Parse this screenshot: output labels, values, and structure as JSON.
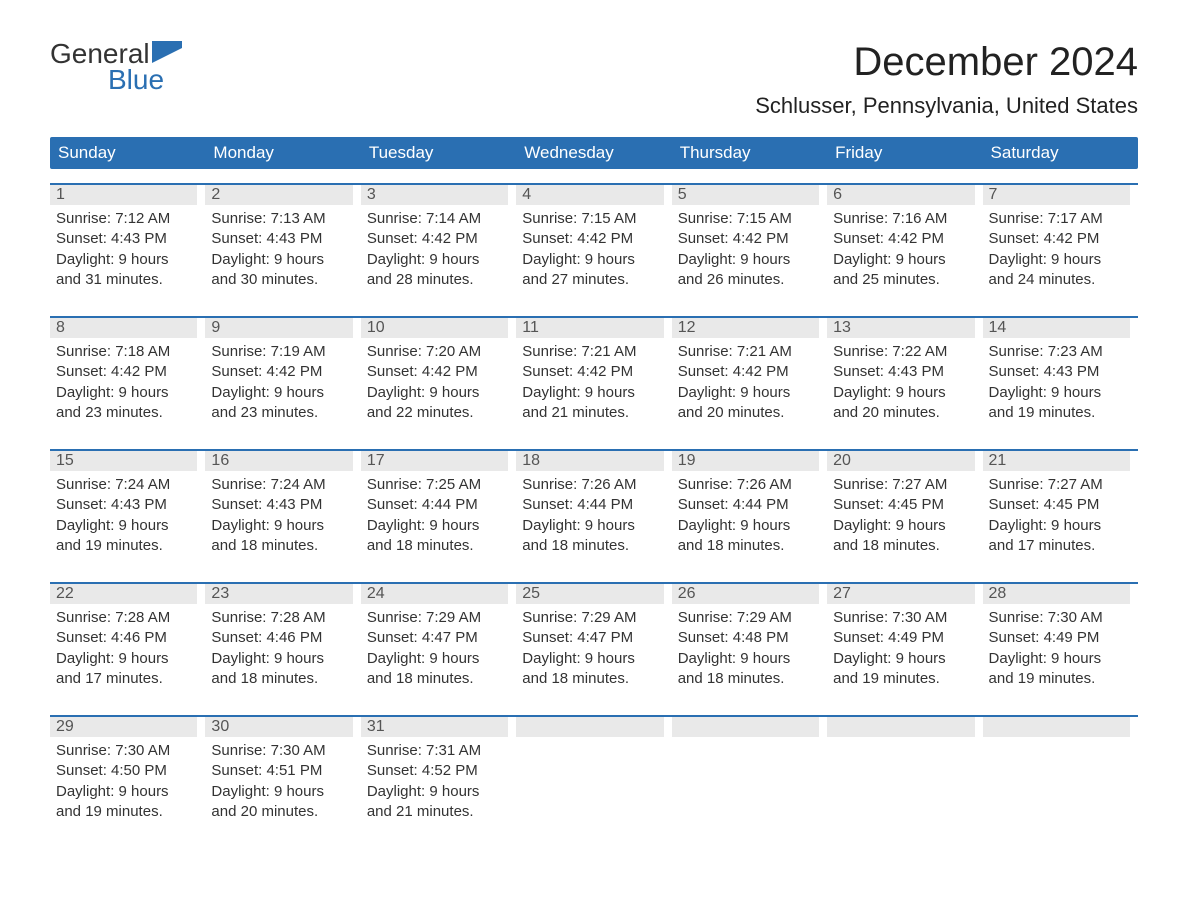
{
  "logo": {
    "word1": "General",
    "word2": "Blue"
  },
  "title": {
    "month": "December 2024",
    "location": "Schlusser, Pennsylvania, United States"
  },
  "colors": {
    "header_bg": "#2a6fb2",
    "header_text": "#ffffff",
    "date_stripe_bg": "#e9e9e9",
    "date_stripe_text": "#555555",
    "body_text": "#333333",
    "week_border": "#2a6fb2",
    "background": "#ffffff",
    "logo_blue": "#2a6fb2"
  },
  "typography": {
    "title_fontsize": 40,
    "location_fontsize": 22,
    "dayheader_fontsize": 17,
    "date_fontsize": 16,
    "info_fontsize": 15,
    "font_family": "Arial"
  },
  "calendar": {
    "type": "calendar-table",
    "day_headers": [
      "Sunday",
      "Monday",
      "Tuesday",
      "Wednesday",
      "Thursday",
      "Friday",
      "Saturday"
    ],
    "weeks": [
      {
        "days": [
          {
            "date": "1",
            "sunrise": "Sunrise: 7:12 AM",
            "sunset": "Sunset: 4:43 PM",
            "dl1": "Daylight: 9 hours",
            "dl2": "and 31 minutes."
          },
          {
            "date": "2",
            "sunrise": "Sunrise: 7:13 AM",
            "sunset": "Sunset: 4:43 PM",
            "dl1": "Daylight: 9 hours",
            "dl2": "and 30 minutes."
          },
          {
            "date": "3",
            "sunrise": "Sunrise: 7:14 AM",
            "sunset": "Sunset: 4:42 PM",
            "dl1": "Daylight: 9 hours",
            "dl2": "and 28 minutes."
          },
          {
            "date": "4",
            "sunrise": "Sunrise: 7:15 AM",
            "sunset": "Sunset: 4:42 PM",
            "dl1": "Daylight: 9 hours",
            "dl2": "and 27 minutes."
          },
          {
            "date": "5",
            "sunrise": "Sunrise: 7:15 AM",
            "sunset": "Sunset: 4:42 PM",
            "dl1": "Daylight: 9 hours",
            "dl2": "and 26 minutes."
          },
          {
            "date": "6",
            "sunrise": "Sunrise: 7:16 AM",
            "sunset": "Sunset: 4:42 PM",
            "dl1": "Daylight: 9 hours",
            "dl2": "and 25 minutes."
          },
          {
            "date": "7",
            "sunrise": "Sunrise: 7:17 AM",
            "sunset": "Sunset: 4:42 PM",
            "dl1": "Daylight: 9 hours",
            "dl2": "and 24 minutes."
          }
        ]
      },
      {
        "days": [
          {
            "date": "8",
            "sunrise": "Sunrise: 7:18 AM",
            "sunset": "Sunset: 4:42 PM",
            "dl1": "Daylight: 9 hours",
            "dl2": "and 23 minutes."
          },
          {
            "date": "9",
            "sunrise": "Sunrise: 7:19 AM",
            "sunset": "Sunset: 4:42 PM",
            "dl1": "Daylight: 9 hours",
            "dl2": "and 23 minutes."
          },
          {
            "date": "10",
            "sunrise": "Sunrise: 7:20 AM",
            "sunset": "Sunset: 4:42 PM",
            "dl1": "Daylight: 9 hours",
            "dl2": "and 22 minutes."
          },
          {
            "date": "11",
            "sunrise": "Sunrise: 7:21 AM",
            "sunset": "Sunset: 4:42 PM",
            "dl1": "Daylight: 9 hours",
            "dl2": "and 21 minutes."
          },
          {
            "date": "12",
            "sunrise": "Sunrise: 7:21 AM",
            "sunset": "Sunset: 4:42 PM",
            "dl1": "Daylight: 9 hours",
            "dl2": "and 20 minutes."
          },
          {
            "date": "13",
            "sunrise": "Sunrise: 7:22 AM",
            "sunset": "Sunset: 4:43 PM",
            "dl1": "Daylight: 9 hours",
            "dl2": "and 20 minutes."
          },
          {
            "date": "14",
            "sunrise": "Sunrise: 7:23 AM",
            "sunset": "Sunset: 4:43 PM",
            "dl1": "Daylight: 9 hours",
            "dl2": "and 19 minutes."
          }
        ]
      },
      {
        "days": [
          {
            "date": "15",
            "sunrise": "Sunrise: 7:24 AM",
            "sunset": "Sunset: 4:43 PM",
            "dl1": "Daylight: 9 hours",
            "dl2": "and 19 minutes."
          },
          {
            "date": "16",
            "sunrise": "Sunrise: 7:24 AM",
            "sunset": "Sunset: 4:43 PM",
            "dl1": "Daylight: 9 hours",
            "dl2": "and 18 minutes."
          },
          {
            "date": "17",
            "sunrise": "Sunrise: 7:25 AM",
            "sunset": "Sunset: 4:44 PM",
            "dl1": "Daylight: 9 hours",
            "dl2": "and 18 minutes."
          },
          {
            "date": "18",
            "sunrise": "Sunrise: 7:26 AM",
            "sunset": "Sunset: 4:44 PM",
            "dl1": "Daylight: 9 hours",
            "dl2": "and 18 minutes."
          },
          {
            "date": "19",
            "sunrise": "Sunrise: 7:26 AM",
            "sunset": "Sunset: 4:44 PM",
            "dl1": "Daylight: 9 hours",
            "dl2": "and 18 minutes."
          },
          {
            "date": "20",
            "sunrise": "Sunrise: 7:27 AM",
            "sunset": "Sunset: 4:45 PM",
            "dl1": "Daylight: 9 hours",
            "dl2": "and 18 minutes."
          },
          {
            "date": "21",
            "sunrise": "Sunrise: 7:27 AM",
            "sunset": "Sunset: 4:45 PM",
            "dl1": "Daylight: 9 hours",
            "dl2": "and 17 minutes."
          }
        ]
      },
      {
        "days": [
          {
            "date": "22",
            "sunrise": "Sunrise: 7:28 AM",
            "sunset": "Sunset: 4:46 PM",
            "dl1": "Daylight: 9 hours",
            "dl2": "and 17 minutes."
          },
          {
            "date": "23",
            "sunrise": "Sunrise: 7:28 AM",
            "sunset": "Sunset: 4:46 PM",
            "dl1": "Daylight: 9 hours",
            "dl2": "and 18 minutes."
          },
          {
            "date": "24",
            "sunrise": "Sunrise: 7:29 AM",
            "sunset": "Sunset: 4:47 PM",
            "dl1": "Daylight: 9 hours",
            "dl2": "and 18 minutes."
          },
          {
            "date": "25",
            "sunrise": "Sunrise: 7:29 AM",
            "sunset": "Sunset: 4:47 PM",
            "dl1": "Daylight: 9 hours",
            "dl2": "and 18 minutes."
          },
          {
            "date": "26",
            "sunrise": "Sunrise: 7:29 AM",
            "sunset": "Sunset: 4:48 PM",
            "dl1": "Daylight: 9 hours",
            "dl2": "and 18 minutes."
          },
          {
            "date": "27",
            "sunrise": "Sunrise: 7:30 AM",
            "sunset": "Sunset: 4:49 PM",
            "dl1": "Daylight: 9 hours",
            "dl2": "and 19 minutes."
          },
          {
            "date": "28",
            "sunrise": "Sunrise: 7:30 AM",
            "sunset": "Sunset: 4:49 PM",
            "dl1": "Daylight: 9 hours",
            "dl2": "and 19 minutes."
          }
        ]
      },
      {
        "days": [
          {
            "date": "29",
            "sunrise": "Sunrise: 7:30 AM",
            "sunset": "Sunset: 4:50 PM",
            "dl1": "Daylight: 9 hours",
            "dl2": "and 19 minutes."
          },
          {
            "date": "30",
            "sunrise": "Sunrise: 7:30 AM",
            "sunset": "Sunset: 4:51 PM",
            "dl1": "Daylight: 9 hours",
            "dl2": "and 20 minutes."
          },
          {
            "date": "31",
            "sunrise": "Sunrise: 7:31 AM",
            "sunset": "Sunset: 4:52 PM",
            "dl1": "Daylight: 9 hours",
            "dl2": "and 21 minutes."
          },
          null,
          null,
          null,
          null
        ]
      }
    ]
  }
}
